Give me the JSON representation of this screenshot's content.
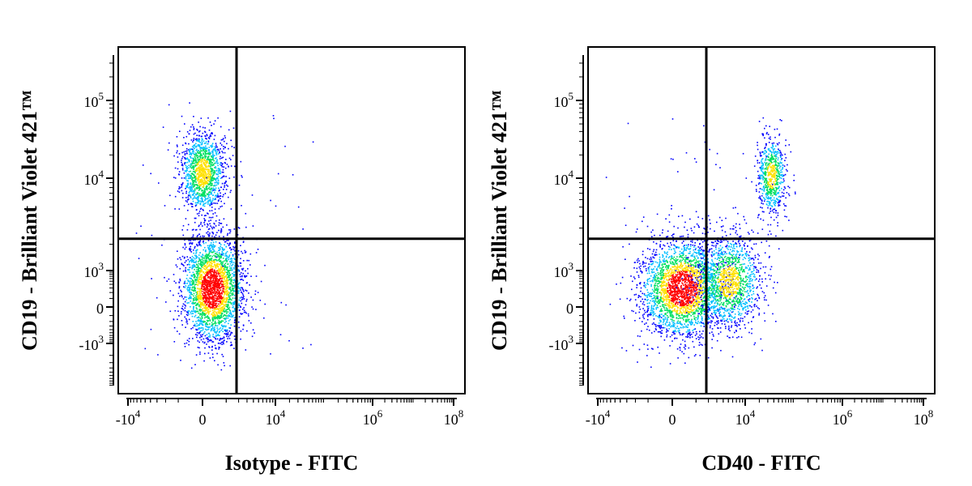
{
  "chart_data": [
    {
      "type": "scatter",
      "subtype": "flow-cytometry density dot plot",
      "xlabel": "Isotype - FITC",
      "ylabel": "CD19 - Brilliant Violet 421™",
      "x_scale": "biexponential",
      "y_scale": "biexponential",
      "x_ticks": [
        {
          "value": -10000,
          "base": "-10",
          "exp": "4"
        },
        {
          "value": 0,
          "base": "0",
          "exp": ""
        },
        {
          "value": 10000,
          "base": "10",
          "exp": "4"
        },
        {
          "value": 1000000,
          "base": "10",
          "exp": "6"
        },
        {
          "value": 100000000,
          "base": "10",
          "exp": "8"
        }
      ],
      "y_ticks": [
        {
          "value": -1000,
          "base": "-10",
          "exp": "3"
        },
        {
          "value": 0,
          "base": "0",
          "exp": ""
        },
        {
          "value": 1000,
          "base": "10",
          "exp": "3"
        },
        {
          "value": 10000,
          "base": "10",
          "exp": "4"
        },
        {
          "value": 100000,
          "base": "10",
          "exp": "5"
        }
      ],
      "quadrant_gate": {
        "x": 1800,
        "y": 2300
      },
      "populations": [
        {
          "x_center": 300,
          "y_center": 300,
          "spread": "large",
          "density": "high"
        },
        {
          "x_center": 0,
          "y_center": 12000,
          "spread": "medium",
          "density": "medium"
        }
      ]
    },
    {
      "type": "scatter",
      "subtype": "flow-cytometry density dot plot",
      "xlabel": "CD40 - FITC",
      "ylabel": "CD19 - Brilliant Violet 421™",
      "x_scale": "biexponential",
      "y_scale": "biexponential",
      "x_ticks": [
        {
          "value": -10000,
          "base": "-10",
          "exp": "4"
        },
        {
          "value": 0,
          "base": "0",
          "exp": ""
        },
        {
          "value": 10000,
          "base": "10",
          "exp": "4"
        },
        {
          "value": 1000000,
          "base": "10",
          "exp": "6"
        },
        {
          "value": 100000000,
          "base": "10",
          "exp": "8"
        }
      ],
      "y_ticks": [
        {
          "value": -1000,
          "base": "-10",
          "exp": "3"
        },
        {
          "value": 0,
          "base": "0",
          "exp": ""
        },
        {
          "value": 1000,
          "base": "10",
          "exp": "3"
        },
        {
          "value": 10000,
          "base": "10",
          "exp": "4"
        },
        {
          "value": 100000,
          "base": "10",
          "exp": "5"
        }
      ],
      "quadrant_gate": {
        "x": 1800,
        "y": 2300
      },
      "populations": [
        {
          "x_center": 300,
          "y_center": 300,
          "spread": "large",
          "density": "high"
        },
        {
          "x_center": 5000,
          "y_center": 500,
          "spread": "medium",
          "density": "medium"
        },
        {
          "x_center": 35000,
          "y_center": 11000,
          "spread": "small",
          "density": "medium"
        }
      ]
    }
  ],
  "colors": {
    "density_low": "#0000ff",
    "density_mid_low": "#00bfff",
    "density_mid": "#00e060",
    "density_mid_high": "#ffe000",
    "density_high": "#ff0000",
    "frame": "#000000"
  }
}
